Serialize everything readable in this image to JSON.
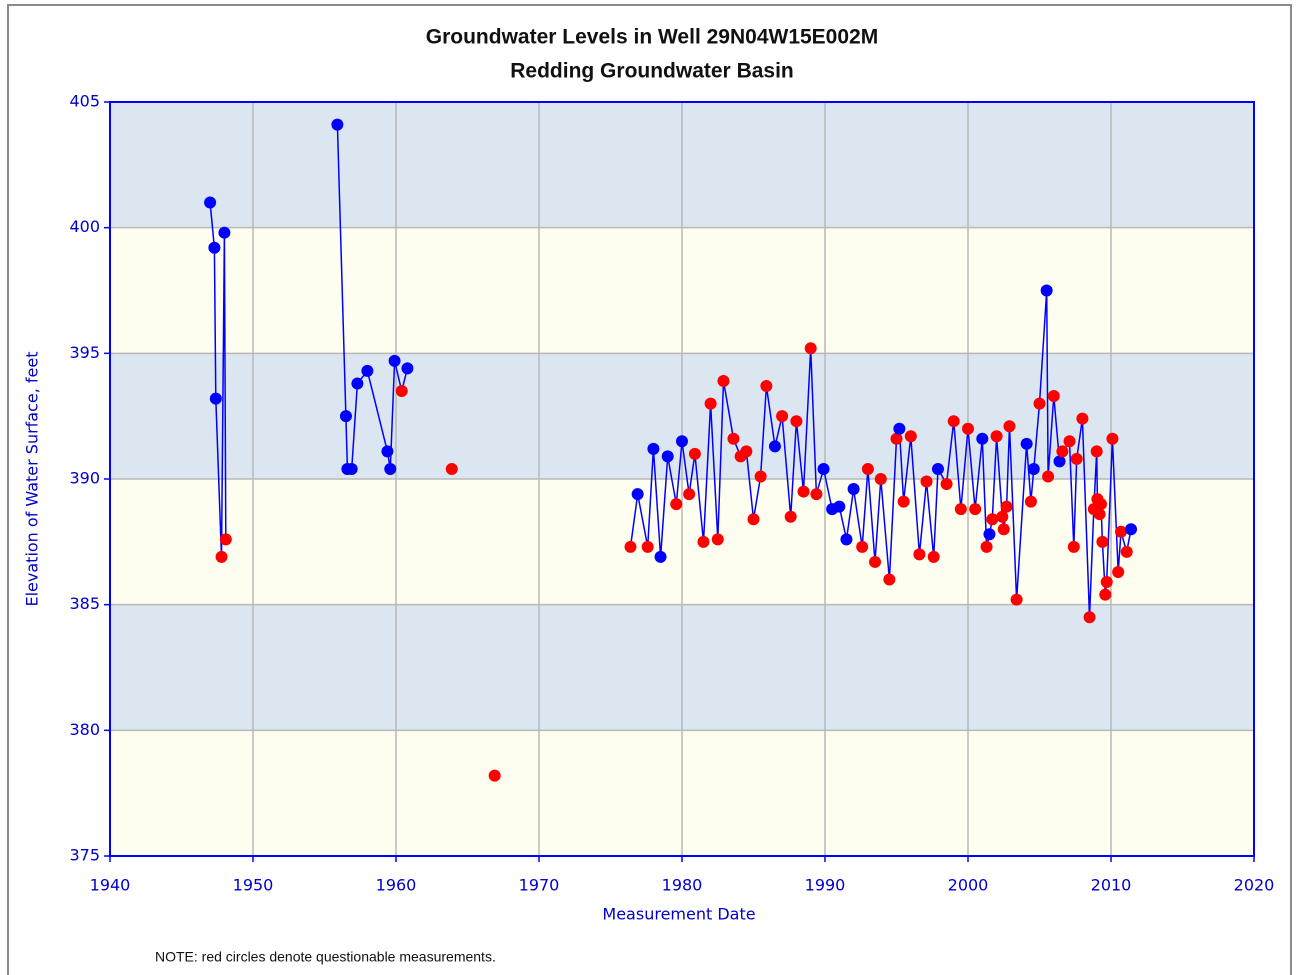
{
  "chart_data": {
    "type": "line",
    "title": "Groundwater Levels in Well 29N04W15E002M",
    "subtitle": "Redding Groundwater Basin",
    "x_label": "Measurement Date",
    "y_label": "Elevation of Water Surface, feet",
    "note": "NOTE: red circles denote questionable measurements.",
    "xlim": [
      1940,
      2020
    ],
    "xticks": [
      1940,
      1950,
      1960,
      1970,
      1980,
      1990,
      2000,
      2010,
      2020
    ],
    "ylim": [
      375,
      405
    ],
    "yticks": [
      375,
      380,
      385,
      390,
      395,
      400,
      405
    ],
    "grid": true,
    "bands": [
      "#fdfdf0",
      "#dce6f0"
    ],
    "axis_color": "#0000ff",
    "x": [
      1947.0,
      1947.3,
      1947.4,
      1947.8,
      1948.0,
      1948.1,
      null,
      1955.9,
      1956.5,
      1956.6,
      1956.9,
      1957.3,
      1958.0,
      1959.4,
      1959.6,
      1959.9,
      1960.4,
      1960.8,
      null,
      1963.9,
      null,
      1966.9,
      null,
      1976.4,
      1976.9,
      1977.6,
      1978.0,
      1978.5,
      1979.0,
      1979.6,
      1980.0,
      1980.5,
      1980.9,
      1981.5,
      1982.0,
      1982.5,
      1982.9,
      1983.6,
      1984.1,
      1984.5,
      1985.0,
      1985.5,
      1985.9,
      1986.5,
      1987.0,
      1987.6,
      1988.0,
      1988.5,
      1989.0,
      1989.4,
      1989.9,
      1990.5,
      1991.0,
      1991.5,
      1992.0,
      1992.6,
      1993.0,
      1993.5,
      1993.9,
      1994.5,
      1995.0,
      1995.2,
      1995.5,
      1996.0,
      1996.6,
      1997.1,
      1997.6,
      1997.9,
      1998.5,
      1999.0,
      1999.5,
      2000.0,
      2000.5,
      2001.0,
      2001.3,
      2001.5,
      2001.7,
      2002.0,
      2002.4,
      2002.5,
      2002.7,
      2002.9,
      2003.4,
      2004.1,
      2004.4,
      2004.6,
      2005.0,
      2005.5,
      2005.6,
      2006.0,
      2006.4,
      2006.6,
      2007.1,
      2007.4,
      2007.6,
      2008.0,
      2008.5,
      2008.8,
      2009.0,
      2009.05,
      2009.2,
      2009.3,
      2009.4,
      2009.6,
      2009.7,
      2010.1,
      2010.5,
      2010.7,
      2011.1,
      2011.4
    ],
    "series": [
      {
        "color": "#0000ff",
        "questionable_color": "#ff0000",
        "values": [
          401.0,
          399.2,
          393.2,
          386.9,
          399.8,
          387.6,
          null,
          404.1,
          392.5,
          390.4,
          390.4,
          393.8,
          394.3,
          391.1,
          390.4,
          394.7,
          393.5,
          394.4,
          null,
          390.4,
          null,
          378.2,
          null,
          387.3,
          389.4,
          387.3,
          391.2,
          386.9,
          390.9,
          389.0,
          391.5,
          389.4,
          391.0,
          387.5,
          393.0,
          387.6,
          393.9,
          391.6,
          390.9,
          391.1,
          388.4,
          390.1,
          393.7,
          391.3,
          392.5,
          388.5,
          392.3,
          389.5,
          395.2,
          389.4,
          390.4,
          388.8,
          388.9,
          387.6,
          389.6,
          387.3,
          390.4,
          386.7,
          390.0,
          386.0,
          391.6,
          392.0,
          389.1,
          391.7,
          387.0,
          389.9,
          386.9,
          390.4,
          389.8,
          392.3,
          388.8,
          392.0,
          388.8,
          391.6,
          387.3,
          387.8,
          388.4,
          391.7,
          388.5,
          388.0,
          388.9,
          392.1,
          385.2,
          391.4,
          389.1,
          390.4,
          393.0,
          397.5,
          390.1,
          393.3,
          390.7,
          391.1,
          391.5,
          387.3,
          390.8,
          392.4,
          384.5,
          388.8,
          391.1,
          389.2,
          388.6,
          389.0,
          387.5,
          385.4,
          385.9,
          391.6,
          386.3,
          387.9,
          387.1,
          388.0
        ],
        "questionable": [
          false,
          false,
          false,
          true,
          false,
          true,
          false,
          false,
          false,
          false,
          false,
          false,
          false,
          false,
          false,
          false,
          true,
          false,
          false,
          true,
          false,
          true,
          false,
          true,
          false,
          true,
          false,
          false,
          false,
          true,
          false,
          true,
          true,
          true,
          true,
          true,
          true,
          true,
          true,
          true,
          true,
          true,
          true,
          false,
          true,
          true,
          true,
          true,
          true,
          true,
          false,
          false,
          false,
          false,
          false,
          true,
          true,
          true,
          true,
          true,
          true,
          false,
          true,
          true,
          true,
          true,
          true,
          false,
          true,
          true,
          true,
          true,
          true,
          false,
          true,
          false,
          true,
          true,
          true,
          true,
          true,
          true,
          true,
          false,
          true,
          false,
          true,
          false,
          true,
          true,
          false,
          true,
          true,
          true,
          true,
          true,
          true,
          true,
          true,
          true,
          true,
          true,
          true,
          true,
          true,
          true,
          true,
          true,
          true,
          false
        ]
      }
    ]
  }
}
